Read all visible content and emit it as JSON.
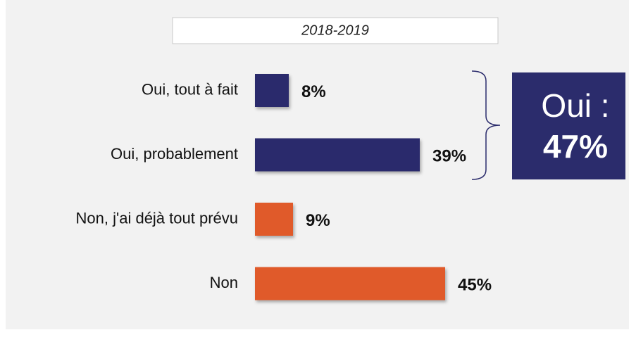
{
  "chart_data": {
    "type": "barh",
    "subtitle": "2018-2019",
    "categories": [
      "Oui, tout à fait",
      "Oui, probablement",
      "Non, j'ai déjà tout prévu",
      "Non"
    ],
    "values": [
      8,
      39,
      9,
      45
    ],
    "value_labels": [
      "8%",
      "39%",
      "9%",
      "45%"
    ],
    "colors": [
      "#2b2c6c",
      "#2b2c6c",
      "#e05a2a",
      "#e05a2a"
    ],
    "annotations": [
      "Oui :",
      "47%"
    ],
    "annotation_color": "#2b2c6c"
  }
}
